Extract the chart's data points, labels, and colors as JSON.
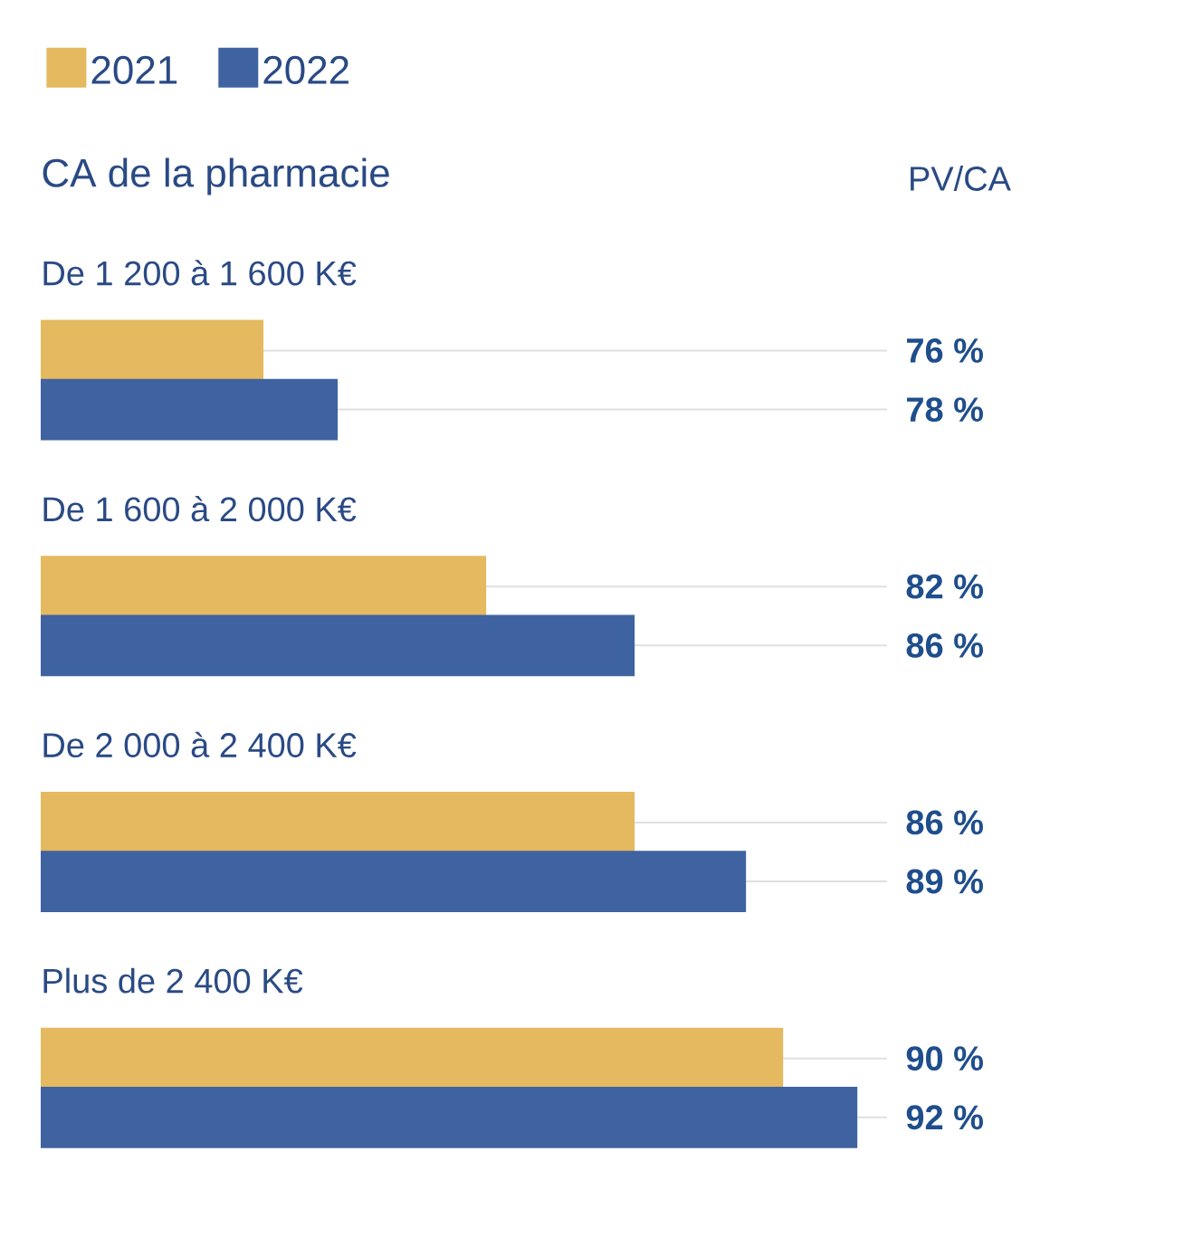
{
  "chart_data": {
    "type": "bar",
    "orientation": "horizontal",
    "title": "CA de la pharmacie",
    "annotations": [
      "PV/CA"
    ],
    "categories": [
      "De 1 200 à 1 600 K€",
      "De 1 600 à 2 000 K€",
      "De 2 000 à 2 400 K€",
      "Plus de 2 400 K€"
    ],
    "series": [
      {
        "name": "2021",
        "color": "#e4b95f",
        "values": [
          76,
          82,
          86,
          90
        ],
        "value_labels": [
          "76 %",
          "82 %",
          "86 %",
          "90 %"
        ]
      },
      {
        "name": "2022",
        "color": "#3f62a0",
        "values": [
          78,
          86,
          89,
          92
        ],
        "value_labels": [
          "78 %",
          "86 %",
          "89 %",
          "92 %"
        ]
      }
    ],
    "xlim": [
      70,
      92.8
    ],
    "legend": "top left"
  }
}
